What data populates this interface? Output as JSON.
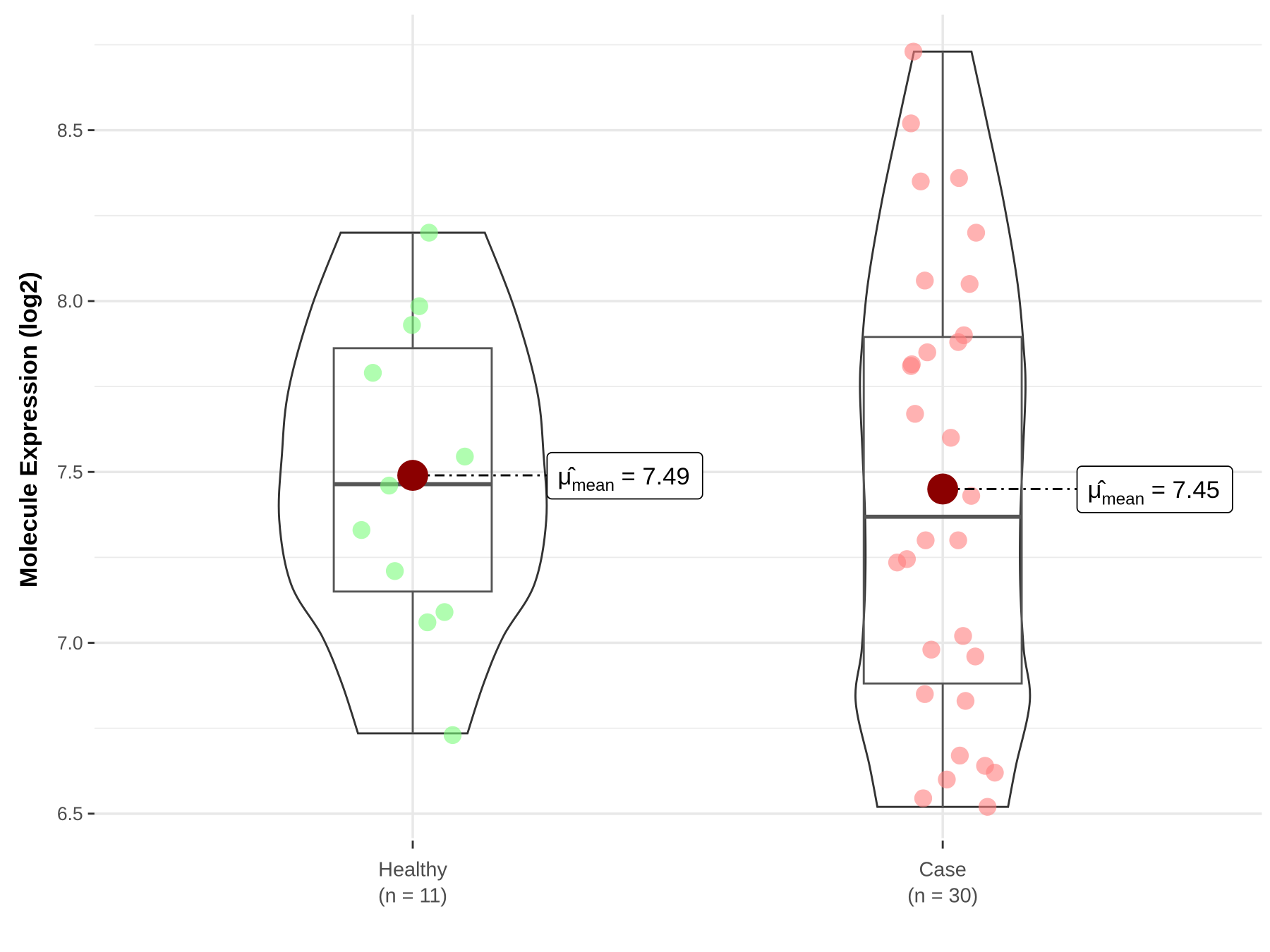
{
  "chart_data": {
    "type": "violin",
    "title": "",
    "xlabel": "",
    "ylabel": "Molecule Expression (log2)",
    "ylim": [
      6.4,
      8.8
    ],
    "yticks": [
      "6.5",
      "7.0",
      "7.5",
      "8.0",
      "8.5"
    ],
    "grid": true,
    "groups": [
      {
        "name": "Healthy",
        "n_label": "(n = 11)",
        "color": "#7CFC7C",
        "points": [
          8.2,
          7.985,
          7.93,
          7.79,
          7.545,
          7.46,
          7.33,
          7.21,
          7.09,
          7.06,
          6.73
        ],
        "box": {
          "min": 6.735,
          "q1": 7.15,
          "median": 7.464,
          "q3": 7.862,
          "max": 8.2
        },
        "mean": 7.49,
        "mean_label": "7.49",
        "violin_profile": [
          [
            8.2,
            0.54
          ],
          [
            7.98,
            0.76
          ],
          [
            7.74,
            0.93
          ],
          [
            7.55,
            0.98
          ],
          [
            7.36,
            1.0
          ],
          [
            7.17,
            0.91
          ],
          [
            7.02,
            0.68
          ],
          [
            6.88,
            0.53
          ],
          [
            6.735,
            0.41
          ]
        ]
      },
      {
        "name": "Case",
        "n_label": "(n = 30)",
        "color": "#FF7F7F",
        "points": [
          8.73,
          8.52,
          8.35,
          8.36,
          8.2,
          8.06,
          8.05,
          7.9,
          7.88,
          7.85,
          7.81,
          7.815,
          7.67,
          7.6,
          7.43,
          7.3,
          7.3,
          7.245,
          7.235,
          7.02,
          6.98,
          6.96,
          6.85,
          6.83,
          6.67,
          6.64,
          6.62,
          6.6,
          6.545,
          6.52
        ],
        "box": {
          "min": 6.52,
          "q1": 6.881,
          "median": 7.369,
          "q3": 7.895,
          "max": 8.73
        },
        "mean": 7.45,
        "mean_label": "7.45",
        "violin_profile": [
          [
            8.73,
            0.33
          ],
          [
            8.52,
            0.51
          ],
          [
            8.29,
            0.7
          ],
          [
            8.05,
            0.86
          ],
          [
            7.86,
            0.93
          ],
          [
            7.74,
            0.95
          ],
          [
            7.55,
            0.92
          ],
          [
            7.36,
            0.89
          ],
          [
            7.17,
            0.89
          ],
          [
            6.98,
            0.93
          ],
          [
            6.83,
            1.0
          ],
          [
            6.64,
            0.84
          ],
          [
            6.52,
            0.75
          ]
        ]
      }
    ],
    "mean_symbol": "μ̂",
    "mean_subscript": "mean",
    "mean_color": "#8B0000"
  }
}
